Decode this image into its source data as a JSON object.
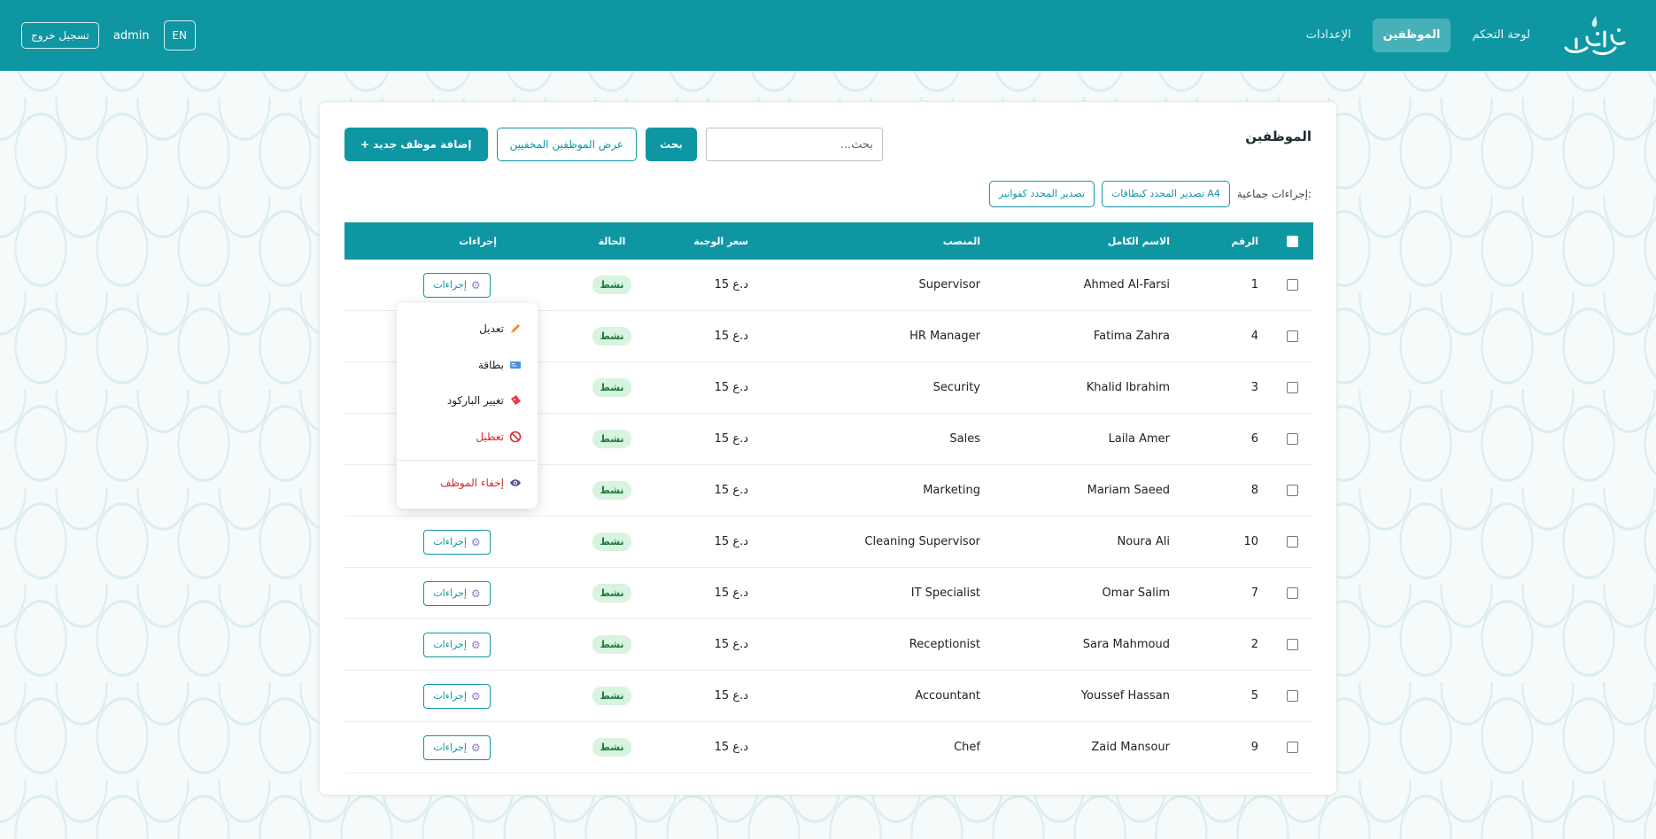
{
  "header": {
    "logo_text": "الخليج",
    "nav": [
      {
        "label": "لوحة التحكم",
        "active": false
      },
      {
        "label": "الموظفين",
        "active": true
      },
      {
        "label": "الإعدادات",
        "active": false
      }
    ],
    "logout_label": "تسجيل خروج",
    "user": "admin",
    "language": "EN"
  },
  "page": {
    "title": "الموظفين",
    "search_placeholder": "بحث...",
    "search_button": "بحث",
    "show_hidden_button": "عرض الموظفين المخفيين",
    "add_button": "+ إضافة موظف جديد",
    "bulk_label": "إجراءات جماعية:",
    "bulk_export_cards": "تصدير المحدد كبطاقات A4",
    "bulk_export_invoices": "تصدير المحدد كفواتير"
  },
  "table": {
    "columns": {
      "num": "الرقم",
      "name": "الاسم الكامل",
      "position": "المنصب",
      "price": "سعر الوجبة",
      "status": "الحالة",
      "actions": "إجراءات"
    },
    "action_label": "إجراءات",
    "rows": [
      {
        "num": "1",
        "name": "Ahmed Al-Farsi",
        "position": "Supervisor",
        "price": "15 د.ع",
        "status": "نشط"
      },
      {
        "num": "4",
        "name": "Fatima Zahra",
        "position": "HR Manager",
        "price": "15 د.ع",
        "status": "نشط"
      },
      {
        "num": "3",
        "name": "Khalid Ibrahim",
        "position": "Security",
        "price": "15 د.ع",
        "status": "نشط"
      },
      {
        "num": "6",
        "name": "Laila Amer",
        "position": "Sales",
        "price": "15 د.ع",
        "status": "نشط"
      },
      {
        "num": "8",
        "name": "Mariam Saeed",
        "position": "Marketing",
        "price": "15 د.ع",
        "status": "نشط"
      },
      {
        "num": "10",
        "name": "Noura Ali",
        "position": "Cleaning Supervisor",
        "price": "15 د.ع",
        "status": "نشط"
      },
      {
        "num": "7",
        "name": "Omar Salim",
        "position": "IT Specialist",
        "price": "15 د.ع",
        "status": "نشط"
      },
      {
        "num": "2",
        "name": "Sara Mahmoud",
        "position": "Receptionist",
        "price": "15 د.ع",
        "status": "نشط"
      },
      {
        "num": "5",
        "name": "Youssef Hassan",
        "position": "Accountant",
        "price": "15 د.ع",
        "status": "نشط"
      },
      {
        "num": "9",
        "name": "Zaid Mansour",
        "position": "Chef",
        "price": "15 د.ع",
        "status": "نشط"
      }
    ]
  },
  "dropdown": {
    "edit": "تعديل",
    "card": "بطاقة",
    "change_barcode": "تغيير الباركود",
    "disable": "تعطيل",
    "hide_employee": "إخفاء الموظف"
  },
  "colors": {
    "primary": "#0e96a3",
    "status_bg": "#d8f3e0",
    "status_text": "#1d7a3c",
    "danger": "#d62b2b"
  }
}
